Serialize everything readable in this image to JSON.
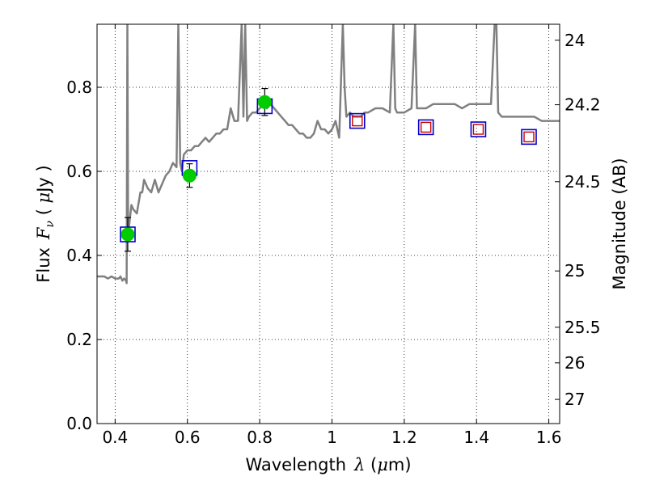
{
  "chart_data": {
    "type": "scatter",
    "xlabel": {
      "prefix": "Wavelength",
      "symbol": "λ",
      "unit_open": " (",
      "unit_mu": "μ",
      "unit_rest": "m)"
    },
    "ylabel": {
      "prefix": "Flux",
      "symbol": "F",
      "subscript": "ν",
      "unit_open": " ( ",
      "unit_mu": "μ",
      "unit_rest": "Jy )"
    },
    "ylabel_right": "Magnitude (AB)",
    "xlim": [
      0.35,
      1.63
    ],
    "ylim": [
      0.0,
      0.95
    ],
    "x_ticks": [
      0.4,
      0.6,
      0.8,
      1.0,
      1.2,
      1.4,
      1.6
    ],
    "x_tick_labels": [
      "0.4",
      "0.6",
      "0.8",
      "1",
      "1.2",
      "1.4",
      "1.6"
    ],
    "y_ticks": [
      0.0,
      0.2,
      0.4,
      0.6,
      0.8
    ],
    "y_tick_labels": [
      "0.0",
      "0.2",
      "0.4",
      "0.6",
      "0.8"
    ],
    "right_ticks": [
      {
        "label": "24",
        "flux": 0.912
      },
      {
        "label": "24.2",
        "flux": 0.7585
      },
      {
        "label": "24.5",
        "flux": 0.5754
      },
      {
        "label": "25",
        "flux": 0.3631
      },
      {
        "label": "25.5",
        "flux": 0.2291
      },
      {
        "label": "26",
        "flux": 0.1445
      },
      {
        "label": "27",
        "flux": 0.0575
      }
    ],
    "grid": true,
    "colors": {
      "spectrum": "#808080",
      "observed": "#00cc00",
      "model_box": "#0000cc",
      "predicted": "#cc0000",
      "errorbar": "#000000"
    },
    "spectrum": {
      "x": [
        0.35,
        0.36,
        0.37,
        0.38,
        0.39,
        0.4,
        0.41,
        0.415,
        0.42,
        0.425,
        0.43,
        0.432,
        0.434,
        0.436,
        0.44,
        0.445,
        0.45,
        0.46,
        0.47,
        0.475,
        0.48,
        0.49,
        0.5,
        0.51,
        0.52,
        0.53,
        0.54,
        0.55,
        0.56,
        0.57,
        0.575,
        0.58,
        0.585,
        0.59,
        0.6,
        0.61,
        0.62,
        0.63,
        0.64,
        0.65,
        0.66,
        0.67,
        0.68,
        0.69,
        0.7,
        0.71,
        0.72,
        0.73,
        0.74,
        0.75,
        0.755,
        0.76,
        0.765,
        0.77,
        0.78,
        0.79,
        0.8,
        0.81,
        0.82,
        0.83,
        0.84,
        0.85,
        0.86,
        0.87,
        0.88,
        0.89,
        0.9,
        0.91,
        0.92,
        0.93,
        0.94,
        0.95,
        0.96,
        0.97,
        0.98,
        0.99,
        1.0,
        1.01,
        1.02,
        1.03,
        1.035,
        1.04,
        1.05,
        1.06,
        1.07,
        1.08,
        1.09,
        1.1,
        1.12,
        1.14,
        1.16,
        1.17,
        1.175,
        1.18,
        1.2,
        1.22,
        1.23,
        1.235,
        1.24,
        1.26,
        1.28,
        1.3,
        1.32,
        1.34,
        1.36,
        1.38,
        1.4,
        1.42,
        1.44,
        1.45,
        1.455,
        1.46,
        1.47,
        1.48,
        1.5,
        1.52,
        1.54,
        1.56,
        1.58,
        1.6,
        1.62,
        1.63
      ],
      "y": [
        0.35,
        0.35,
        0.35,
        0.345,
        0.35,
        0.345,
        0.345,
        0.35,
        0.34,
        0.345,
        0.34,
        0.334,
        0.95,
        0.45,
        0.48,
        0.52,
        0.51,
        0.5,
        0.55,
        0.55,
        0.58,
        0.56,
        0.55,
        0.58,
        0.55,
        0.57,
        0.59,
        0.6,
        0.62,
        0.61,
        0.95,
        0.62,
        0.6,
        0.64,
        0.65,
        0.65,
        0.66,
        0.66,
        0.67,
        0.68,
        0.67,
        0.68,
        0.69,
        0.69,
        0.7,
        0.7,
        0.75,
        0.72,
        0.72,
        0.95,
        0.73,
        0.95,
        0.72,
        0.73,
        0.74,
        0.74,
        0.75,
        0.76,
        0.75,
        0.76,
        0.75,
        0.74,
        0.73,
        0.72,
        0.71,
        0.71,
        0.7,
        0.69,
        0.69,
        0.68,
        0.68,
        0.69,
        0.72,
        0.7,
        0.7,
        0.69,
        0.7,
        0.72,
        0.68,
        0.95,
        0.8,
        0.73,
        0.74,
        0.73,
        0.73,
        0.73,
        0.74,
        0.74,
        0.75,
        0.75,
        0.74,
        0.95,
        0.75,
        0.74,
        0.74,
        0.75,
        0.95,
        0.75,
        0.75,
        0.75,
        0.76,
        0.76,
        0.76,
        0.76,
        0.75,
        0.76,
        0.76,
        0.76,
        0.76,
        0.95,
        0.95,
        0.74,
        0.73,
        0.73,
        0.73,
        0.73,
        0.73,
        0.73,
        0.72,
        0.72,
        0.72,
        0.72
      ]
    },
    "observed_points": [
      {
        "x": 0.435,
        "y": 0.45,
        "err": 0.04
      },
      {
        "x": 0.606,
        "y": 0.59,
        "err": 0.028
      },
      {
        "x": 0.814,
        "y": 0.765,
        "err": 0.032
      }
    ],
    "model_boxes": [
      {
        "x": 0.435,
        "y": 0.45
      },
      {
        "x": 0.606,
        "y": 0.608
      },
      {
        "x": 0.814,
        "y": 0.755
      },
      {
        "x": 1.07,
        "y": 0.72
      },
      {
        "x": 1.26,
        "y": 0.705
      },
      {
        "x": 1.405,
        "y": 0.7
      },
      {
        "x": 1.545,
        "y": 0.682
      }
    ],
    "predicted_points": [
      {
        "x": 1.07,
        "y": 0.72
      },
      {
        "x": 1.26,
        "y": 0.705
      },
      {
        "x": 1.405,
        "y": 0.7
      },
      {
        "x": 1.545,
        "y": 0.682
      }
    ]
  }
}
